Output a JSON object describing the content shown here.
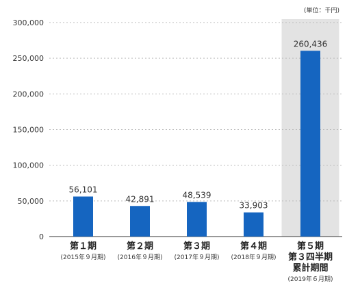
{
  "chart_data": {
    "type": "bar",
    "unit_label": "(単位：千円)",
    "title": "",
    "xlabel": "",
    "ylabel": "",
    "ylim": [
      0,
      300000
    ],
    "yticks": [
      "0",
      "50,000",
      "100,000",
      "150,000",
      "200,000",
      "250,000",
      "300,000"
    ],
    "ytick_values": [
      0,
      50000,
      100000,
      150000,
      200000,
      250000,
      300000
    ],
    "grid": true,
    "categories": [
      {
        "lines": [
          "第１期"
        ],
        "sub": "(2015年９月期)"
      },
      {
        "lines": [
          "第２期"
        ],
        "sub": "(2016年９月期)"
      },
      {
        "lines": [
          "第３期"
        ],
        "sub": "(2017年９月期)"
      },
      {
        "lines": [
          "第４期"
        ],
        "sub": "(2018年９月期)"
      },
      {
        "lines": [
          "第５期",
          "第３四半期",
          "累計期間"
        ],
        "sub": "(2019年６月期)"
      }
    ],
    "values": [
      56101,
      42891,
      48539,
      33903,
      260436
    ],
    "value_labels": [
      "56,101",
      "42,891",
      "48,539",
      "33,903",
      "260,436"
    ],
    "highlight_index": 4,
    "colors": {
      "bar": "#1565c0",
      "highlight_bg": "#e3e3e3",
      "grid": "#bbbbbb",
      "axis": "#333333",
      "text": "#333333"
    }
  }
}
